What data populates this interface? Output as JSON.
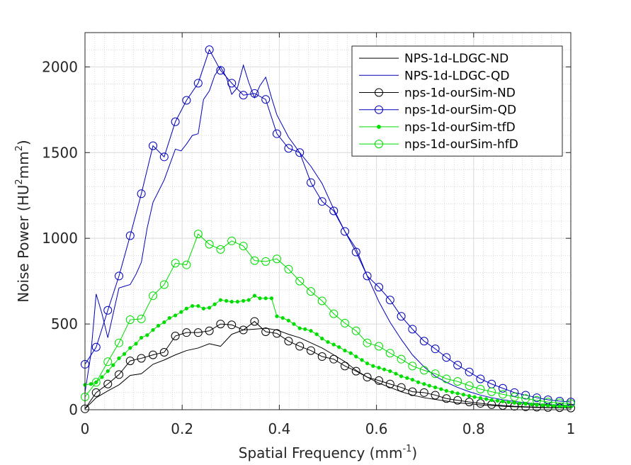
{
  "chart_data": {
    "type": "line",
    "title": "",
    "xlabel": {
      "text": "Spatial Frequency (mm",
      "sup": "-1",
      "after": ")"
    },
    "ylabel": {
      "p1": "Noise Power (HU",
      "s1": "2",
      "p2": "mm",
      "s2": "2",
      "p3": ")"
    },
    "xlim": [
      0,
      1
    ],
    "ylim": [
      0,
      2200
    ],
    "xticks": [
      0,
      0.2,
      0.4,
      0.6,
      0.8,
      1
    ],
    "xtick_labels": [
      "0",
      "0.2",
      "0.4",
      "0.6",
      "0.8",
      "1"
    ],
    "yticks": [
      0,
      500,
      1000,
      1500,
      2000
    ],
    "ytick_labels": [
      "0",
      "500",
      "1000",
      "1500",
      "2000"
    ],
    "grid": true,
    "minor_grid": true,
    "legend_position": "top-right",
    "series": [
      {
        "name": "NPS-1d-LDGC-ND",
        "color": "#000000",
        "marker": "none",
        "x": [
          0,
          0.023,
          0.047,
          0.07,
          0.093,
          0.116,
          0.14,
          0.163,
          0.186,
          0.209,
          0.233,
          0.256,
          0.279,
          0.302,
          0.326,
          0.349,
          0.372,
          0.395,
          0.419,
          0.442,
          0.465,
          0.488,
          0.512,
          0.535,
          0.558,
          0.581,
          0.605,
          0.628,
          0.651,
          0.674,
          0.698,
          0.721,
          0.744,
          0.767,
          0.791,
          0.814,
          0.837,
          0.86,
          0.884,
          0.907,
          0.93,
          0.953,
          0.977,
          1.0
        ],
        "y": [
          5,
          70,
          110,
          145,
          200,
          210,
          265,
          290,
          320,
          345,
          360,
          385,
          370,
          440,
          465,
          470,
          475,
          465,
          440,
          420,
          390,
          360,
          320,
          280,
          230,
          190,
          155,
          130,
          105,
          85,
          70,
          60,
          50,
          40,
          35,
          28,
          24,
          20,
          17,
          15,
          13,
          12,
          11,
          10
        ]
      },
      {
        "name": "NPS-1d-LDGC-QD",
        "color": "#0000bb",
        "marker": "none",
        "x": [
          0,
          0.012,
          0.023,
          0.035,
          0.047,
          0.058,
          0.07,
          0.081,
          0.093,
          0.105,
          0.116,
          0.128,
          0.14,
          0.163,
          0.186,
          0.198,
          0.209,
          0.221,
          0.233,
          0.244,
          0.256,
          0.267,
          0.279,
          0.291,
          0.302,
          0.314,
          0.326,
          0.337,
          0.349,
          0.36,
          0.372,
          0.384,
          0.395,
          0.419,
          0.442,
          0.465,
          0.488,
          0.512,
          0.535,
          0.558,
          0.581,
          0.605,
          0.628,
          0.651,
          0.674,
          0.698,
          0.721,
          0.744,
          0.767,
          0.791,
          0.814,
          0.837,
          0.86,
          0.884,
          0.907,
          0.93,
          0.953,
          0.977,
          1.0
        ],
        "y": [
          100,
          320,
          675,
          560,
          420,
          560,
          710,
          720,
          730,
          790,
          860,
          1060,
          1210,
          1340,
          1520,
          1510,
          1550,
          1600,
          1610,
          1810,
          1860,
          1950,
          2000,
          1940,
          1840,
          1880,
          2010,
          1910,
          1820,
          1890,
          1940,
          1820,
          1720,
          1590,
          1500,
          1420,
          1320,
          1170,
          1040,
          940,
          780,
          630,
          510,
          410,
          320,
          250,
          195,
          160,
          130,
          105,
          85,
          70,
          58,
          48,
          40,
          34,
          30,
          27,
          25
        ]
      },
      {
        "name": "nps-1d-ourSim-ND",
        "color": "#000000",
        "marker": "circle",
        "x": [
          0,
          0.023,
          0.047,
          0.07,
          0.093,
          0.116,
          0.14,
          0.163,
          0.186,
          0.209,
          0.233,
          0.256,
          0.279,
          0.302,
          0.326,
          0.349,
          0.372,
          0.395,
          0.419,
          0.442,
          0.465,
          0.488,
          0.512,
          0.535,
          0.558,
          0.581,
          0.605,
          0.628,
          0.651,
          0.674,
          0.698,
          0.721,
          0.744,
          0.767,
          0.791,
          0.814,
          0.837,
          0.86,
          0.884,
          0.907,
          0.93,
          0.953,
          0.977,
          1.0
        ],
        "y": [
          5,
          100,
          150,
          205,
          285,
          300,
          320,
          335,
          430,
          450,
          450,
          460,
          500,
          495,
          465,
          515,
          455,
          445,
          400,
          370,
          345,
          310,
          295,
          255,
          225,
          190,
          170,
          150,
          130,
          105,
          100,
          85,
          65,
          55,
          45,
          37,
          30,
          25,
          20,
          17,
          15,
          13,
          12,
          10
        ]
      },
      {
        "name": "nps-1d-ourSim-QD",
        "color": "#0000bb",
        "marker": "circle",
        "x": [
          0,
          0.023,
          0.047,
          0.07,
          0.093,
          0.116,
          0.14,
          0.163,
          0.186,
          0.209,
          0.233,
          0.256,
          0.279,
          0.302,
          0.326,
          0.349,
          0.372,
          0.395,
          0.419,
          0.442,
          0.465,
          0.488,
          0.512,
          0.535,
          0.558,
          0.581,
          0.605,
          0.628,
          0.651,
          0.674,
          0.698,
          0.721,
          0.744,
          0.767,
          0.791,
          0.814,
          0.837,
          0.86,
          0.884,
          0.907,
          0.93,
          0.953,
          0.977,
          1.0
        ],
        "y": [
          265,
          365,
          580,
          780,
          1015,
          1260,
          1540,
          1475,
          1680,
          1805,
          1905,
          2100,
          1980,
          1905,
          1835,
          1845,
          1810,
          1610,
          1525,
          1500,
          1325,
          1215,
          1160,
          1040,
          920,
          780,
          715,
          640,
          545,
          470,
          400,
          355,
          305,
          260,
          220,
          180,
          150,
          125,
          100,
          85,
          70,
          58,
          50,
          45
        ]
      },
      {
        "name": "nps-1d-ourSim-tfD",
        "color": "#00dd00",
        "marker": "dot",
        "x": [
          0,
          0.012,
          0.023,
          0.035,
          0.047,
          0.058,
          0.07,
          0.081,
          0.093,
          0.105,
          0.116,
          0.128,
          0.14,
          0.151,
          0.163,
          0.174,
          0.186,
          0.198,
          0.209,
          0.221,
          0.233,
          0.244,
          0.256,
          0.267,
          0.279,
          0.291,
          0.302,
          0.314,
          0.326,
          0.337,
          0.349,
          0.36,
          0.372,
          0.384,
          0.395,
          0.407,
          0.419,
          0.43,
          0.442,
          0.453,
          0.465,
          0.477,
          0.488,
          0.5,
          0.512,
          0.523,
          0.535,
          0.547,
          0.558,
          0.57,
          0.581,
          0.593,
          0.605,
          0.616,
          0.628,
          0.64,
          0.651,
          0.663,
          0.674,
          0.686,
          0.698,
          0.709,
          0.721,
          0.733,
          0.744,
          0.756,
          0.767,
          0.779,
          0.791,
          0.802,
          0.814,
          0.826,
          0.837,
          0.849,
          0.86,
          0.872,
          0.884,
          0.895,
          0.907,
          0.919,
          0.93,
          0.942,
          0.953,
          0.965,
          0.977,
          0.988,
          1.0
        ],
        "y": [
          145,
          150,
          160,
          190,
          225,
          260,
          300,
          325,
          360,
          385,
          420,
          435,
          465,
          490,
          510,
          535,
          550,
          570,
          590,
          605,
          605,
          590,
          595,
          615,
          640,
          635,
          630,
          630,
          635,
          640,
          665,
          650,
          650,
          650,
          545,
          535,
          520,
          500,
          475,
          470,
          460,
          440,
          415,
          395,
          380,
          365,
          345,
          330,
          310,
          290,
          270,
          255,
          245,
          235,
          225,
          210,
          195,
          185,
          175,
          160,
          150,
          140,
          130,
          120,
          110,
          102,
          95,
          88,
          80,
          74,
          68,
          62,
          56,
          52,
          48,
          44,
          40,
          37,
          34,
          31,
          28,
          26,
          24,
          22,
          20,
          19,
          18
        ]
      },
      {
        "name": "nps-1d-ourSim-hfD",
        "color": "#00dd00",
        "marker": "circle",
        "x": [
          0,
          0.023,
          0.047,
          0.07,
          0.093,
          0.116,
          0.14,
          0.163,
          0.186,
          0.209,
          0.233,
          0.256,
          0.279,
          0.302,
          0.326,
          0.349,
          0.372,
          0.395,
          0.419,
          0.442,
          0.465,
          0.488,
          0.512,
          0.535,
          0.558,
          0.581,
          0.605,
          0.628,
          0.651,
          0.674,
          0.698,
          0.721,
          0.744,
          0.767,
          0.791,
          0.814,
          0.837,
          0.86,
          0.884,
          0.907,
          0.93,
          0.953,
          0.977,
          1.0
        ],
        "y": [
          75,
          160,
          280,
          390,
          525,
          530,
          665,
          730,
          855,
          845,
          1025,
          965,
          935,
          985,
          955,
          870,
          865,
          880,
          820,
          750,
          690,
          635,
          560,
          505,
          460,
          390,
          370,
          330,
          295,
          255,
          230,
          210,
          180,
          165,
          140,
          120,
          105,
          90,
          75,
          65,
          55,
          45,
          40,
          35
        ]
      }
    ]
  }
}
